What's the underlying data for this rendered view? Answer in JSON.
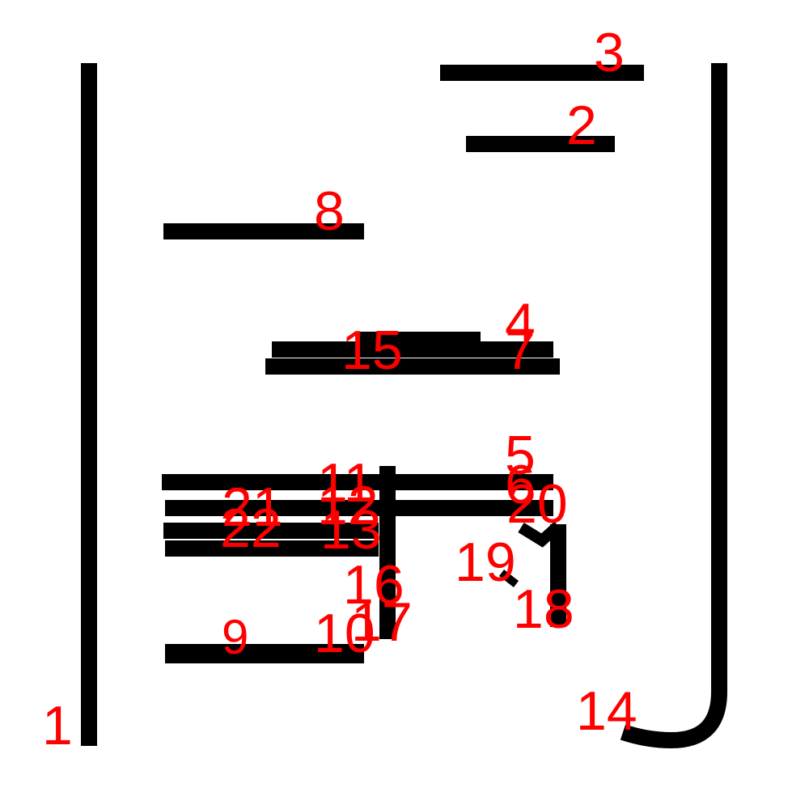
{
  "colors": {
    "stroke": "#000000",
    "label": "#ff0000",
    "background": "#ffffff"
  },
  "strokes": [
    {
      "id": "1",
      "label": "1"
    },
    {
      "id": "2",
      "label": "2"
    },
    {
      "id": "3",
      "label": "3"
    },
    {
      "id": "4",
      "label": "4"
    },
    {
      "id": "5",
      "label": "5"
    },
    {
      "id": "6",
      "label": "6"
    },
    {
      "id": "7",
      "label": "7"
    },
    {
      "id": "8",
      "label": "8"
    },
    {
      "id": "9",
      "label": "9"
    },
    {
      "id": "10",
      "label": "10"
    },
    {
      "id": "11",
      "label": "11"
    },
    {
      "id": "12",
      "label": "12"
    },
    {
      "id": "13",
      "label": "13"
    },
    {
      "id": "14",
      "label": "14"
    },
    {
      "id": "15",
      "label": "15"
    },
    {
      "id": "16",
      "label": "16"
    },
    {
      "id": "17",
      "label": "17"
    },
    {
      "id": "18",
      "label": "18"
    },
    {
      "id": "19",
      "label": "19"
    },
    {
      "id": "20",
      "label": "20"
    },
    {
      "id": "21",
      "label": "21"
    },
    {
      "id": "22",
      "label": "22"
    }
  ]
}
